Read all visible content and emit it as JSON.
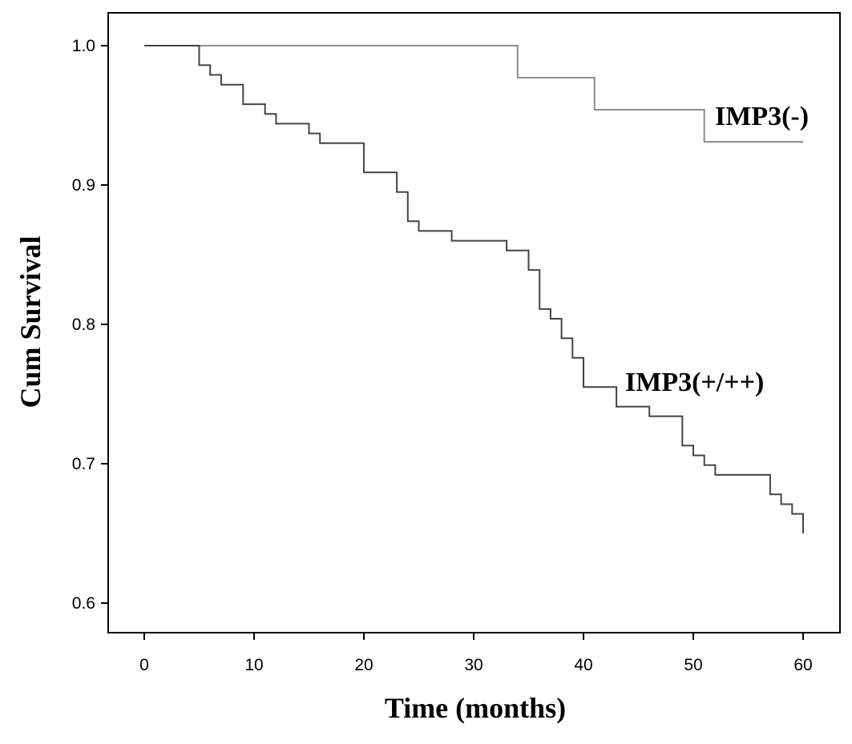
{
  "chart_data": {
    "type": "line",
    "step": true,
    "title": "",
    "xlabel": "Time (months)",
    "ylabel": "Cum Survival",
    "xlim": [
      0,
      60
    ],
    "ylim": [
      0.6,
      1.0
    ],
    "x_ticks": [
      0,
      10,
      20,
      30,
      40,
      50,
      60
    ],
    "y_ticks": [
      0.6,
      0.7,
      0.8,
      0.9,
      1.0
    ],
    "x_tick_labels": [
      "0",
      "10",
      "20",
      "30",
      "40",
      "50",
      "60"
    ],
    "y_tick_labels": [
      "0.6",
      "0.7",
      "0.8",
      "0.9",
      "1.0"
    ],
    "grid": false,
    "legend": "none",
    "series": [
      {
        "name": "IMP3(-)",
        "color": "#8c8c8c",
        "x": [
          0,
          34,
          41,
          51,
          60
        ],
        "y": [
          1.0,
          0.977,
          0.954,
          0.931,
          0.931
        ]
      },
      {
        "name": "IMP3(+/++)",
        "color": "#444444",
        "x": [
          0,
          5,
          6,
          7,
          9,
          11,
          12,
          15,
          16,
          20,
          23,
          24,
          25,
          28,
          33,
          35,
          36,
          37,
          38,
          39,
          40,
          41,
          43,
          46,
          49,
          50,
          51,
          52,
          57,
          58,
          59,
          60
        ],
        "y": [
          1.0,
          0.986,
          0.979,
          0.972,
          0.958,
          0.951,
          0.944,
          0.937,
          0.93,
          0.909,
          0.895,
          0.874,
          0.867,
          0.86,
          0.853,
          0.839,
          0.811,
          0.804,
          0.79,
          0.776,
          0.755,
          0.755,
          0.741,
          0.734,
          0.713,
          0.706,
          0.699,
          0.692,
          0.678,
          0.671,
          0.664,
          0.65
        ]
      }
    ]
  }
}
